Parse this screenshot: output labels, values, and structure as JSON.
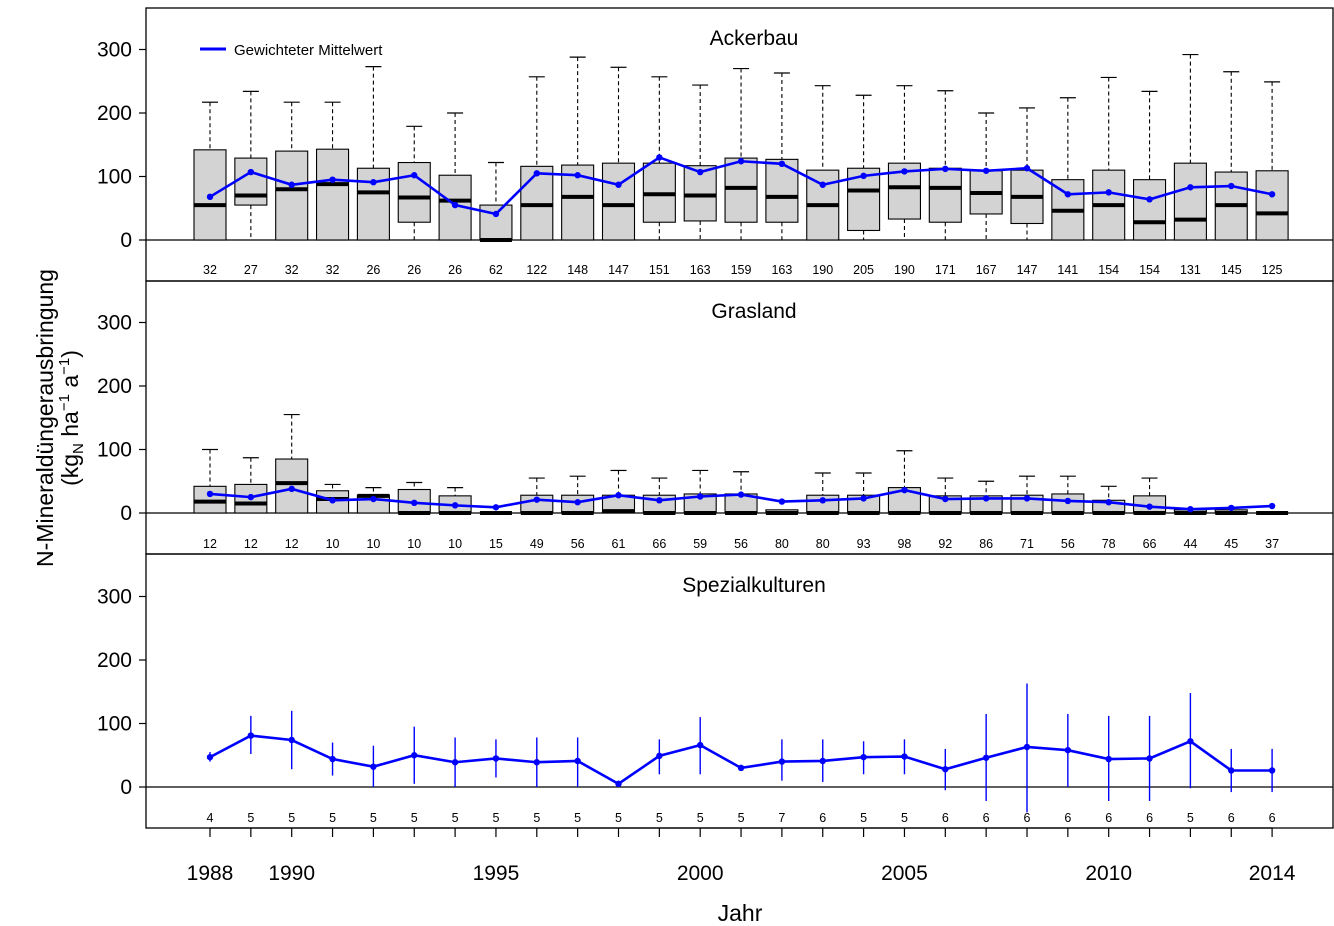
{
  "chart_data": {
    "type": "boxplot",
    "xlabel": "Jahr",
    "ylabel_line1": "N-Mineraldüngerausbringung",
    "ylabel_unit": {
      "open": "(kg",
      "sub_n": "N",
      "ha": " ha",
      "sup1": "−1",
      "a": " a",
      "sup2": "−1",
      "close": ")"
    },
    "legend_label": "Gewichteter Mittelwert",
    "ylim": [
      0,
      300
    ],
    "yticks": [
      0,
      100,
      200,
      300
    ],
    "years": [
      1988,
      1989,
      1990,
      1991,
      1992,
      1993,
      1994,
      1995,
      1996,
      1997,
      1998,
      1999,
      2000,
      2001,
      2002,
      2003,
      2004,
      2005,
      2006,
      2007,
      2008,
      2009,
      2010,
      2011,
      2012,
      2013,
      2014
    ],
    "xtick_labels": [
      {
        "year": 1988,
        "label": "1988"
      },
      {
        "year": 1990,
        "label": "1990"
      },
      {
        "year": 1995,
        "label": "1995"
      },
      {
        "year": 2000,
        "label": "2000"
      },
      {
        "year": 2005,
        "label": "2005"
      },
      {
        "year": 2010,
        "label": "2010"
      },
      {
        "year": 2014,
        "label": "2014"
      }
    ],
    "colors": {
      "mean": "#0000ff",
      "box_fill": "#d3d3d3",
      "box_border": "#000000"
    },
    "panels": [
      {
        "title": "Ackerbau",
        "kind": "box",
        "n": [
          32,
          27,
          32,
          32,
          26,
          26,
          26,
          62,
          122,
          148,
          147,
          151,
          163,
          159,
          163,
          190,
          205,
          190,
          171,
          167,
          147,
          141,
          154,
          154,
          131,
          145,
          125
        ],
        "whisker_high": [
          217,
          234,
          217,
          217,
          273,
          179,
          200,
          122,
          257,
          288,
          272,
          257,
          244,
          270,
          263,
          243,
          228,
          243,
          235,
          200,
          208,
          224,
          256,
          234,
          292,
          265,
          249
        ],
        "q3": [
          142,
          129,
          140,
          143,
          113,
          122,
          102,
          55,
          116,
          118,
          121,
          121,
          117,
          129,
          127,
          110,
          113,
          121,
          113,
          109,
          110,
          95,
          110,
          95,
          121,
          107,
          109
        ],
        "median": [
          55,
          70,
          80,
          88,
          75,
          67,
          62,
          0,
          55,
          68,
          55,
          72,
          70,
          82,
          68,
          55,
          78,
          83,
          82,
          74,
          68,
          46,
          55,
          28,
          32,
          55,
          42
        ],
        "q1": [
          0,
          55,
          0,
          0,
          0,
          28,
          0,
          0,
          0,
          0,
          0,
          28,
          30,
          28,
          28,
          0,
          15,
          33,
          28,
          41,
          26,
          0,
          0,
          0,
          0,
          0,
          0
        ],
        "whisker_low": [
          0,
          0,
          0,
          0,
          0,
          0,
          0,
          0,
          0,
          0,
          0,
          0,
          0,
          0,
          0,
          0,
          0,
          0,
          0,
          0,
          0,
          0,
          0,
          0,
          0,
          0,
          0
        ],
        "mean": [
          68,
          107,
          87,
          95,
          91,
          102,
          55,
          41,
          105,
          102,
          87,
          130,
          107,
          124,
          120,
          87,
          101,
          108,
          112,
          109,
          113,
          72,
          75,
          64,
          83,
          85,
          72
        ]
      },
      {
        "title": "Grasland",
        "kind": "box",
        "n": [
          12,
          12,
          12,
          10,
          10,
          10,
          10,
          15,
          49,
          56,
          61,
          66,
          59,
          56,
          80,
          80,
          93,
          98,
          92,
          86,
          71,
          56,
          78,
          66,
          44,
          45,
          37
        ],
        "whisker_high": [
          100,
          87,
          155,
          45,
          40,
          48,
          40,
          0,
          55,
          58,
          67,
          55,
          67,
          65,
          5,
          63,
          63,
          98,
          55,
          50,
          58,
          58,
          42,
          55,
          5,
          5,
          0
        ],
        "q3": [
          42,
          45,
          85,
          35,
          28,
          37,
          27,
          0,
          28,
          28,
          28,
          28,
          30,
          30,
          5,
          28,
          28,
          40,
          27,
          27,
          28,
          30,
          20,
          27,
          5,
          5,
          0
        ],
        "median": [
          18,
          15,
          47,
          22,
          27,
          0,
          0,
          0,
          0,
          0,
          3,
          0,
          0,
          0,
          0,
          0,
          0,
          0,
          0,
          0,
          0,
          0,
          0,
          0,
          0,
          0,
          0
        ],
        "q1": [
          0,
          0,
          0,
          0,
          0,
          0,
          0,
          0,
          0,
          0,
          0,
          0,
          0,
          0,
          0,
          0,
          0,
          0,
          0,
          0,
          0,
          0,
          0,
          0,
          0,
          0,
          0
        ],
        "whisker_low": [
          0,
          0,
          0,
          0,
          0,
          0,
          0,
          0,
          0,
          0,
          0,
          0,
          0,
          0,
          0,
          0,
          0,
          0,
          0,
          0,
          0,
          0,
          0,
          0,
          0,
          0,
          0
        ],
        "mean": [
          30,
          25,
          38,
          20,
          22,
          16,
          12,
          9,
          21,
          17,
          28,
          20,
          26,
          29,
          18,
          20,
          23,
          36,
          22,
          23,
          23,
          19,
          17,
          10,
          6,
          8,
          11
        ]
      },
      {
        "title": "Spezialkulturen",
        "kind": "errorbar",
        "n": [
          4,
          5,
          5,
          5,
          5,
          5,
          5,
          5,
          5,
          5,
          5,
          5,
          5,
          5,
          7,
          6,
          5,
          5,
          6,
          6,
          6,
          6,
          6,
          6,
          5,
          6,
          6
        ],
        "mean": [
          47,
          81,
          74,
          44,
          32,
          50,
          39,
          45,
          39,
          41,
          5,
          49,
          66,
          30,
          40,
          41,
          47,
          48,
          28,
          46,
          63,
          58,
          44,
          45,
          72,
          26,
          26
        ],
        "err_low": [
          40,
          52,
          28,
          18,
          0,
          5,
          0,
          15,
          0,
          0,
          0,
          20,
          20,
          28,
          10,
          8,
          20,
          20,
          -5,
          -22,
          -40,
          0,
          -22,
          -22,
          -2,
          -8,
          -8
        ],
        "err_high": [
          55,
          112,
          120,
          70,
          65,
          95,
          78,
          75,
          78,
          78,
          10,
          75,
          110,
          35,
          75,
          75,
          72,
          75,
          60,
          115,
          163,
          115,
          112,
          112,
          148,
          60,
          60
        ]
      }
    ]
  }
}
